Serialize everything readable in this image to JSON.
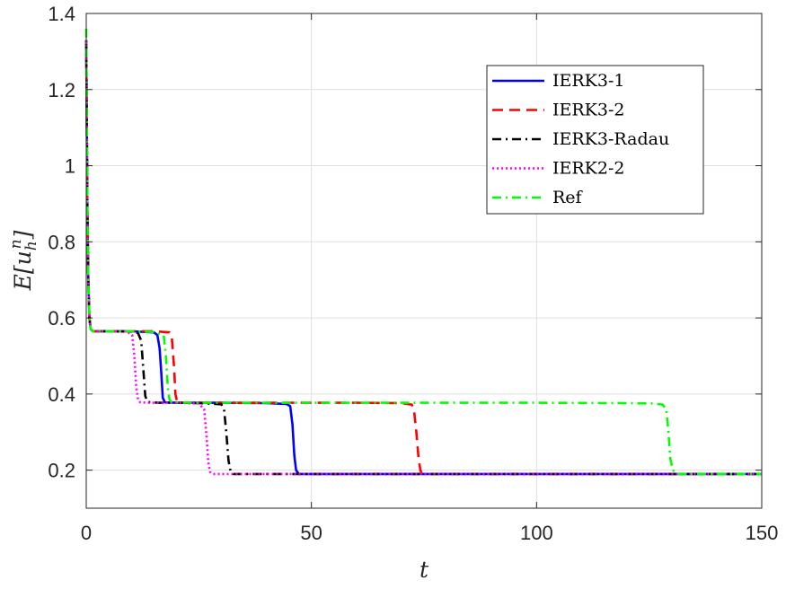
{
  "chart_data": {
    "type": "line",
    "title": "",
    "xlabel": "t",
    "ylabel": "E[u_h^n]",
    "ylabel_parts": {
      "base": "E[u",
      "sub": "h",
      "sup": "n",
      "close": "]"
    },
    "xlim": [
      0,
      150
    ],
    "ylim": [
      0.1,
      1.4
    ],
    "xticks": [
      0,
      50,
      100,
      150
    ],
    "yticks": [
      0.2,
      0.4,
      0.6,
      0.8,
      1,
      1.2,
      1.4
    ],
    "xtick_labels": [
      "0",
      "50",
      "100",
      "150"
    ],
    "ytick_labels": [
      "0.2",
      "0.4",
      "0.6",
      "0.8",
      "1",
      "1.2",
      "1.4"
    ],
    "grid": true,
    "legend_position": "top-right",
    "series": [
      {
        "name": "IERK3-1",
        "color": "#0000ff",
        "dash": "solid",
        "x": [
          0,
          0.1,
          0.25,
          0.45,
          0.7,
          1.0,
          1.5,
          5,
          10,
          15,
          15.8,
          16.3,
          16.7,
          17.0,
          17.5,
          20,
          30,
          40,
          44.5,
          45.3,
          45.8,
          46.2,
          46.6,
          47.2,
          60,
          80,
          100,
          120,
          140,
          150
        ],
        "values": [
          1.33,
          1.15,
          0.88,
          0.7,
          0.6,
          0.57,
          0.565,
          0.565,
          0.565,
          0.562,
          0.555,
          0.52,
          0.45,
          0.39,
          0.378,
          0.377,
          0.377,
          0.376,
          0.374,
          0.368,
          0.32,
          0.24,
          0.2,
          0.19,
          0.19,
          0.19,
          0.19,
          0.19,
          0.19,
          0.19
        ]
      },
      {
        "name": "IERK3-2",
        "color": "#ff0000",
        "dash": "dashed",
        "x": [
          0,
          0.1,
          0.25,
          0.45,
          0.7,
          1.0,
          1.5,
          5,
          10,
          15,
          18.5,
          19.0,
          19.5,
          19.8,
          20.2,
          22,
          30,
          40,
          50,
          60,
          70,
          72.3,
          72.8,
          73.3,
          73.8,
          74.2,
          74.5
        ],
        "values": [
          1.33,
          1.15,
          0.88,
          0.7,
          0.6,
          0.57,
          0.565,
          0.565,
          0.565,
          0.565,
          0.562,
          0.548,
          0.47,
          0.4,
          0.378,
          0.377,
          0.377,
          0.377,
          0.377,
          0.377,
          0.376,
          0.372,
          0.355,
          0.3,
          0.23,
          0.2,
          0.19
        ]
      },
      {
        "name": "IERK3-Radau",
        "color": "#000000",
        "dash": "dashdot",
        "x": [
          0,
          0.1,
          0.25,
          0.45,
          0.7,
          1.0,
          1.5,
          5,
          10,
          11.5,
          12.2,
          12.7,
          13.1,
          13.6,
          16,
          20,
          25,
          30,
          30.6,
          31.1,
          31.6,
          32.1,
          32.7,
          40,
          60,
          80,
          100,
          120,
          140,
          150
        ],
        "values": [
          1.33,
          1.15,
          0.88,
          0.7,
          0.6,
          0.57,
          0.565,
          0.565,
          0.564,
          0.56,
          0.54,
          0.46,
          0.395,
          0.379,
          0.377,
          0.377,
          0.376,
          0.373,
          0.36,
          0.3,
          0.225,
          0.195,
          0.19,
          0.19,
          0.19,
          0.19,
          0.19,
          0.19,
          0.19,
          0.19
        ]
      },
      {
        "name": "IERK2-2",
        "color": "#ff00ff",
        "dash": "dotted",
        "x": [
          0,
          0.1,
          0.25,
          0.45,
          0.7,
          1.0,
          1.5,
          5,
          9,
          10.2,
          10.7,
          11.1,
          11.5,
          12,
          15,
          20,
          25,
          26.2,
          26.7,
          27.1,
          27.5,
          28.1,
          35,
          60,
          80,
          100,
          120,
          140,
          150
        ],
        "values": [
          1.33,
          1.15,
          0.88,
          0.7,
          0.6,
          0.57,
          0.565,
          0.565,
          0.564,
          0.555,
          0.5,
          0.42,
          0.385,
          0.378,
          0.377,
          0.377,
          0.375,
          0.36,
          0.29,
          0.22,
          0.195,
          0.19,
          0.19,
          0.19,
          0.19,
          0.19,
          0.19,
          0.19,
          0.19
        ]
      },
      {
        "name": "Ref",
        "color": "#00ff00",
        "dash": "dashdot",
        "x": [
          0,
          0.1,
          0.25,
          0.45,
          0.7,
          1.0,
          1.5,
          5,
          10,
          15,
          17.2,
          17.7,
          18.1,
          18.5,
          19,
          25,
          40,
          60,
          80,
          100,
          120,
          126,
          128,
          128.8,
          129.3,
          129.7,
          130.3,
          131,
          140,
          150
        ],
        "values": [
          1.36,
          1.15,
          0.88,
          0.7,
          0.6,
          0.57,
          0.565,
          0.565,
          0.565,
          0.563,
          0.555,
          0.5,
          0.42,
          0.385,
          0.378,
          0.377,
          0.377,
          0.377,
          0.377,
          0.377,
          0.376,
          0.375,
          0.372,
          0.36,
          0.3,
          0.23,
          0.2,
          0.19,
          0.19,
          0.19
        ]
      }
    ]
  }
}
